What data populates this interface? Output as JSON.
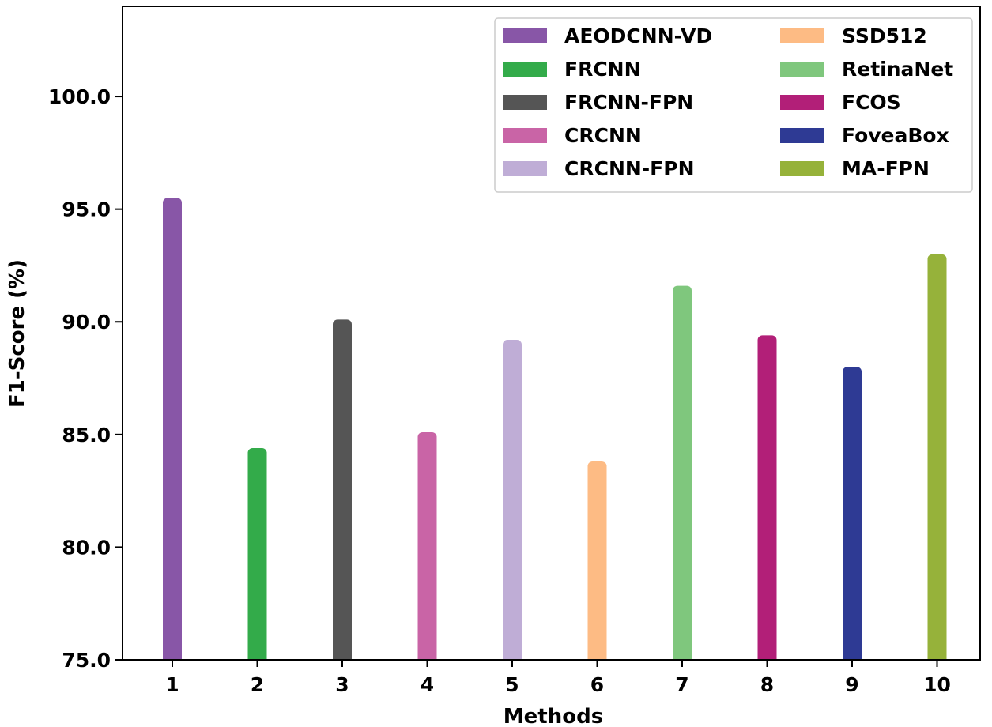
{
  "chart_data": {
    "type": "bar",
    "title": "",
    "xlabel": "Methods",
    "ylabel": "F1-Score (%)",
    "ylim": [
      75,
      104
    ],
    "yticks": [
      75,
      80,
      85,
      90,
      95,
      100
    ],
    "ytick_labels": [
      "75.0",
      "80.0",
      "85.0",
      "90.0",
      "95.0",
      "100.0"
    ],
    "categories": [
      "1",
      "2",
      "3",
      "4",
      "5",
      "6",
      "7",
      "8",
      "9",
      "10"
    ],
    "grid": false,
    "legend_position": "top-right",
    "series": [
      {
        "name": "AEODCNN-VD",
        "category": "1",
        "value": 95.5,
        "color": "#8856a7"
      },
      {
        "name": "FRCNN",
        "category": "2",
        "value": 84.4,
        "color": "#33ab4a"
      },
      {
        "name": "FRCNN-FPN",
        "category": "3",
        "value": 90.1,
        "color": "#555555"
      },
      {
        "name": "CRCNN",
        "category": "4",
        "value": 85.1,
        "color": "#c964a6"
      },
      {
        "name": "CRCNN-FPN",
        "category": "5",
        "value": 89.2,
        "color": "#bfadd6"
      },
      {
        "name": "SSD512",
        "category": "6",
        "value": 83.8,
        "color": "#fdbb84"
      },
      {
        "name": "RetinaNet",
        "category": "7",
        "value": 91.6,
        "color": "#7fc77d"
      },
      {
        "name": "FCOS",
        "category": "8",
        "value": 89.4,
        "color": "#b21f78"
      },
      {
        "name": "FoveaBox",
        "category": "9",
        "value": 88.0,
        "color": "#2e3a94"
      },
      {
        "name": "MA-FPN",
        "category": "10",
        "value": 93.0,
        "color": "#96b23a"
      }
    ]
  }
}
